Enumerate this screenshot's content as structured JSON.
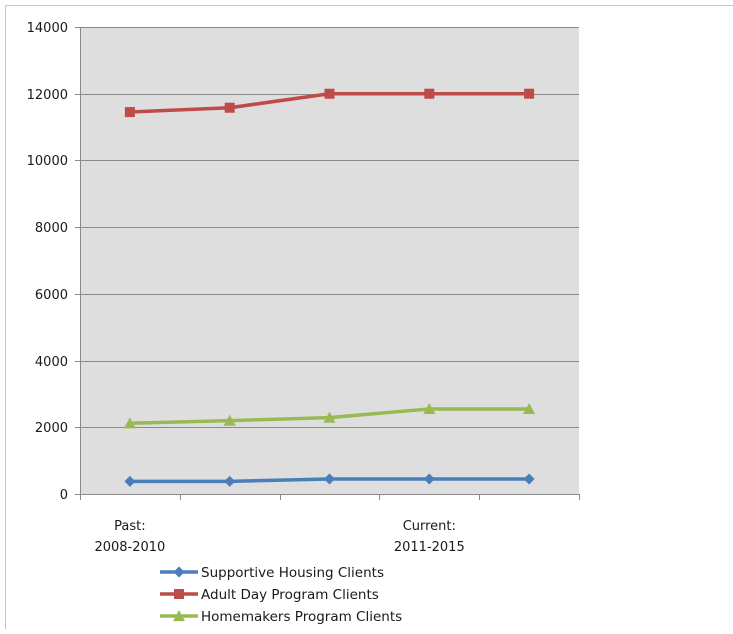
{
  "chart_data": {
    "type": "line",
    "title": "",
    "xlabel": "",
    "ylabel": "",
    "ylim": [
      0,
      14000
    ],
    "y_ticks": [
      "0",
      "2000",
      "4000",
      "6000",
      "8000",
      "10000",
      "12000",
      "14000"
    ],
    "grid": true,
    "legend_position": "bottom",
    "plot_background": "#dedede",
    "x_points": 5,
    "x_labels": [
      {
        "index": 0,
        "line1": "Past:",
        "line2": "2008-2010"
      },
      {
        "index": 3,
        "line1": "Current:",
        "line2": "2011-2015"
      }
    ],
    "series": [
      {
        "name": "Supportive Housing Clients",
        "color": "#4a7ebb",
        "marker": "diamond",
        "values": [
          380,
          380,
          450,
          450,
          450
        ]
      },
      {
        "name": "Adult Day Program Clients",
        "color": "#be4b48",
        "marker": "square",
        "values": [
          11450,
          11580,
          12000,
          12000,
          12000
        ]
      },
      {
        "name": "Homemakers Program Clients",
        "color": "#98b954",
        "marker": "triangle",
        "values": [
          2120,
          2200,
          2290,
          2550,
          2550
        ]
      }
    ]
  }
}
